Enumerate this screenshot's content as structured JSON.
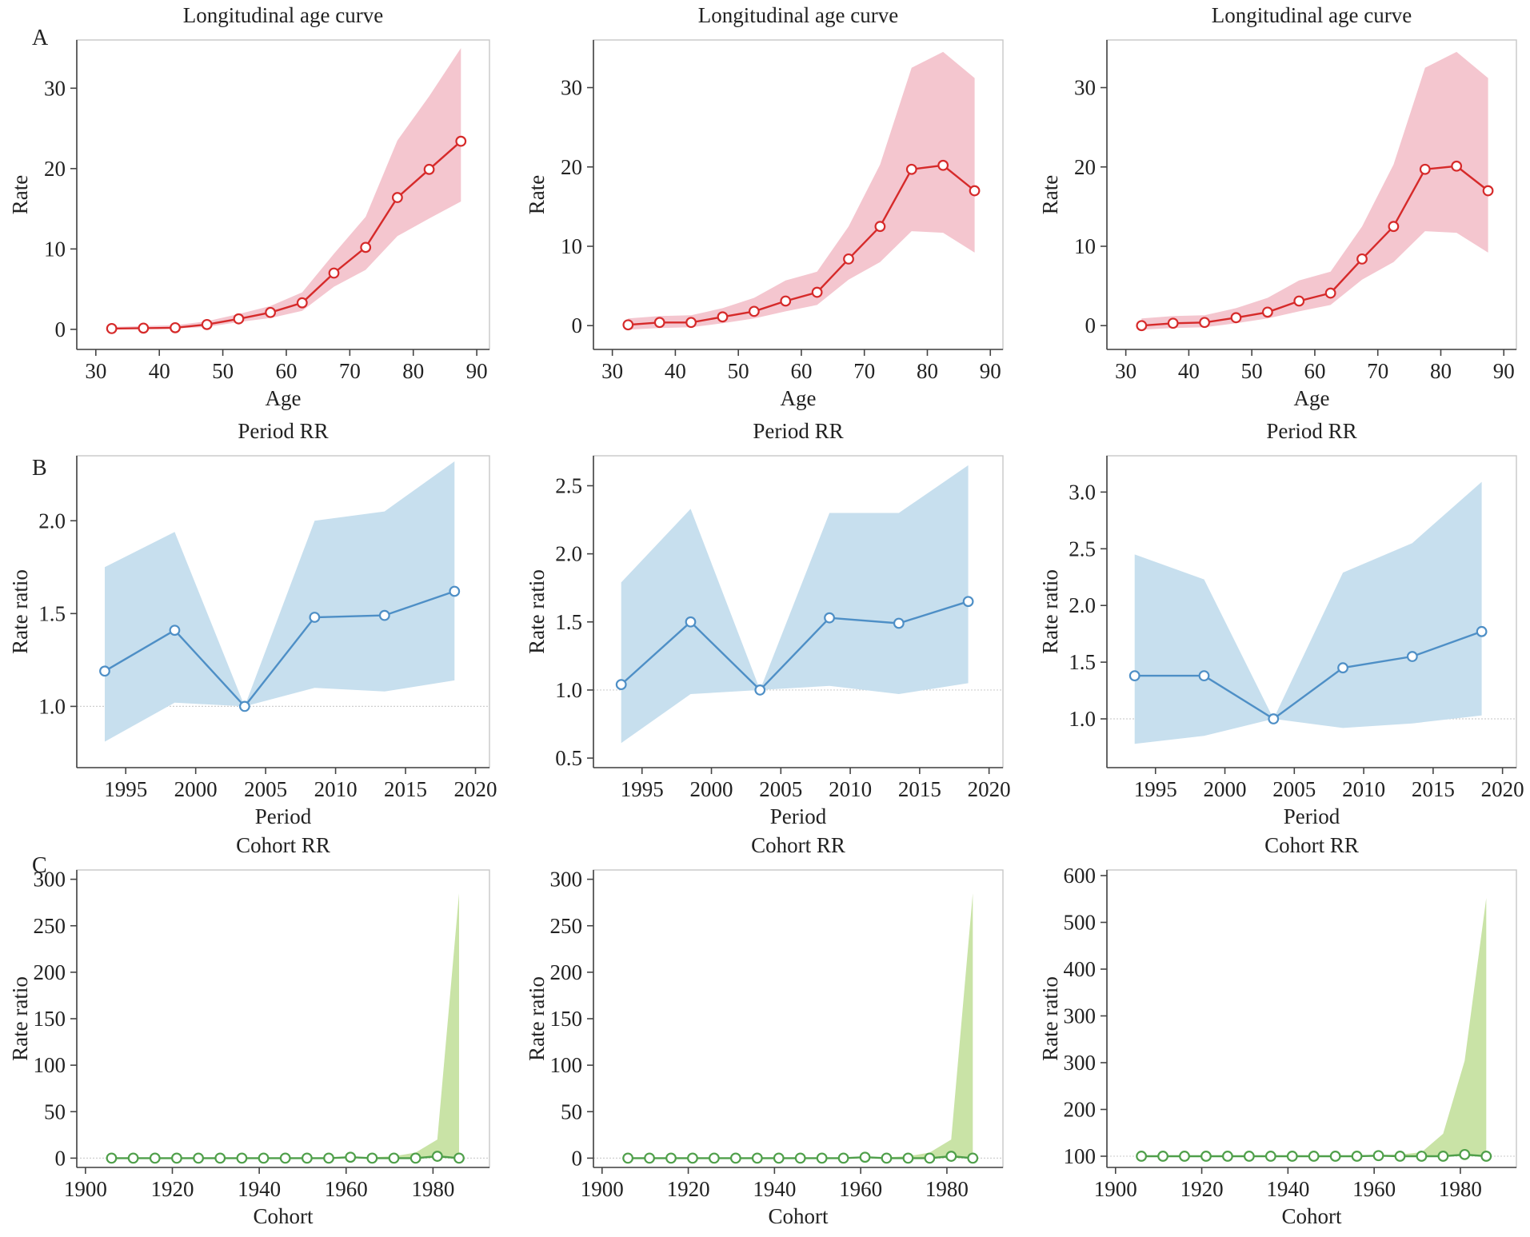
{
  "figure": {
    "row_labels": [
      "A",
      "B",
      "C"
    ]
  },
  "colors": {
    "age_line": "#d62a2a",
    "age_band": "#f4c6cf",
    "period_line": "#4e8fc6",
    "period_band": "#c7dfee",
    "cohort_line": "#4f9f4a",
    "cohort_band": "#c9e3a6"
  },
  "chart_data": [
    {
      "type": "line",
      "panel": "A1",
      "title": "Longitudinal age curve",
      "xlabel": "Age",
      "ylabel": "Rate",
      "xlim": [
        27,
        92
      ],
      "ylim": [
        -2.5,
        36
      ],
      "xticks": [
        30,
        40,
        50,
        60,
        70,
        80,
        90
      ],
      "xtick_labels": [
        "30",
        "40",
        "50",
        "60",
        "70",
        "80",
        "90"
      ],
      "yticks": [
        0,
        10,
        20,
        30
      ],
      "ytick_labels": [
        "0",
        "10",
        "20",
        "30"
      ],
      "grid": false,
      "x": [
        32.5,
        37.5,
        42.5,
        47.5,
        52.5,
        57.5,
        62.5,
        67.5,
        72.5,
        77.5,
        82.5,
        87.5
      ],
      "values": [
        0.1,
        0.15,
        0.2,
        0.6,
        1.3,
        2.1,
        3.3,
        7.0,
        10.2,
        16.4,
        19.9,
        23.4
      ],
      "lower": [
        0.0,
        0.05,
        0.1,
        0.3,
        0.9,
        1.4,
        2.3,
        5.3,
        7.4,
        11.6,
        13.8,
        15.9
      ],
      "upper": [
        0.3,
        0.4,
        0.5,
        1.0,
        1.9,
        2.9,
        4.6,
        9.4,
        14.0,
        23.5,
        29.0,
        35.0
      ]
    },
    {
      "type": "line",
      "panel": "A2",
      "title": "Longitudinal age curve",
      "xlabel": "Age",
      "ylabel": "Rate",
      "xlim": [
        27,
        92
      ],
      "ylim": [
        -3,
        36
      ],
      "xticks": [
        30,
        40,
        50,
        60,
        70,
        80,
        90
      ],
      "xtick_labels": [
        "30",
        "40",
        "50",
        "60",
        "70",
        "80",
        "90"
      ],
      "yticks": [
        0,
        10,
        20,
        30
      ],
      "ytick_labels": [
        "0",
        "10",
        "20",
        "30"
      ],
      "grid": false,
      "x": [
        32.5,
        37.5,
        42.5,
        47.5,
        52.5,
        57.5,
        62.5,
        67.5,
        72.5,
        77.5,
        82.5,
        87.5
      ],
      "values": [
        0.1,
        0.4,
        0.4,
        1.1,
        1.8,
        3.1,
        4.2,
        8.4,
        12.5,
        19.7,
        20.2,
        17.0
      ],
      "lower": [
        -0.5,
        -0.3,
        -0.2,
        0.3,
        0.9,
        1.8,
        2.6,
        5.8,
        8.0,
        11.9,
        11.7,
        9.2
      ],
      "upper": [
        0.9,
        1.2,
        1.3,
        2.2,
        3.5,
        5.7,
        6.8,
        12.5,
        20.3,
        32.5,
        34.5,
        31.2
      ]
    },
    {
      "type": "line",
      "panel": "A3",
      "title": "Longitudinal age curve",
      "xlabel": "Age",
      "ylabel": "Rate",
      "xlim": [
        27,
        92
      ],
      "ylim": [
        -3,
        36
      ],
      "xticks": [
        30,
        40,
        50,
        60,
        70,
        80,
        90
      ],
      "xtick_labels": [
        "30",
        "40",
        "50",
        "60",
        "70",
        "80",
        "90"
      ],
      "yticks": [
        0,
        10,
        20,
        30
      ],
      "ytick_labels": [
        "0",
        "10",
        "20",
        "30"
      ],
      "grid": false,
      "x": [
        32.5,
        37.5,
        42.5,
        47.5,
        52.5,
        57.5,
        62.5,
        67.5,
        72.5,
        77.5,
        82.5,
        87.5
      ],
      "values": [
        0.0,
        0.3,
        0.4,
        1.0,
        1.7,
        3.1,
        4.1,
        8.4,
        12.5,
        19.7,
        20.1,
        17.0
      ],
      "lower": [
        -0.5,
        -0.3,
        -0.2,
        0.3,
        0.9,
        1.8,
        2.6,
        5.8,
        8.0,
        11.9,
        11.7,
        9.2
      ],
      "upper": [
        0.9,
        1.2,
        1.3,
        2.2,
        3.5,
        5.7,
        6.8,
        12.5,
        20.3,
        32.5,
        34.5,
        31.2
      ]
    },
    {
      "type": "line",
      "panel": "B1",
      "title": "Period RR",
      "xlabel": "Period",
      "ylabel": "Rate ratio",
      "xlim": [
        1991.5,
        2021
      ],
      "ylim": [
        0.67,
        2.35
      ],
      "xticks": [
        1995,
        2000,
        2005,
        2010,
        2015,
        2020
      ],
      "xtick_labels": [
        "1995",
        "2000",
        "2005",
        "2010",
        "2015",
        "2020"
      ],
      "yticks": [
        1.0,
        1.5,
        2.0
      ],
      "ytick_labels": [
        "1.0",
        "1.5",
        "2.0"
      ],
      "reference": 1.0,
      "grid": false,
      "x": [
        1993.5,
        1998.5,
        2003.5,
        2008.5,
        2013.5,
        2018.5
      ],
      "values": [
        1.19,
        1.41,
        1.0,
        1.48,
        1.49,
        1.62
      ],
      "lower": [
        0.81,
        1.02,
        1.0,
        1.1,
        1.08,
        1.14
      ],
      "upper": [
        1.75,
        1.94,
        1.0,
        2.0,
        2.05,
        2.32
      ]
    },
    {
      "type": "line",
      "panel": "B2",
      "title": "Period RR",
      "xlabel": "Period",
      "ylabel": "Rate ratio",
      "xlim": [
        1991.5,
        2021
      ],
      "ylim": [
        0.43,
        2.72
      ],
      "xticks": [
        1995,
        2000,
        2005,
        2010,
        2015,
        2020
      ],
      "xtick_labels": [
        "1995",
        "2000",
        "2005",
        "2010",
        "2015",
        "2020"
      ],
      "yticks": [
        0.5,
        1.0,
        1.5,
        2.0,
        2.5
      ],
      "ytick_labels": [
        "0.5",
        "1.0",
        "1.5",
        "2.0",
        "2.5"
      ],
      "reference": 1.0,
      "grid": false,
      "x": [
        1993.5,
        1998.5,
        2003.5,
        2008.5,
        2013.5,
        2018.5
      ],
      "values": [
        1.04,
        1.5,
        1.0,
        1.53,
        1.49,
        1.65
      ],
      "lower": [
        0.61,
        0.97,
        1.0,
        1.03,
        0.97,
        1.05
      ],
      "upper": [
        1.79,
        2.33,
        1.0,
        2.3,
        2.3,
        2.65
      ]
    },
    {
      "type": "line",
      "panel": "B3",
      "title": "Period RR",
      "xlabel": "Period",
      "ylabel": "Rate ratio",
      "xlim": [
        1991.5,
        2021
      ],
      "ylim": [
        0.57,
        3.32
      ],
      "xticks": [
        1995,
        2000,
        2005,
        2010,
        2015,
        2020
      ],
      "xtick_labels": [
        "1995",
        "2000",
        "2005",
        "2010",
        "2015",
        "2020"
      ],
      "yticks": [
        1.0,
        1.5,
        2.0,
        2.5,
        3.0
      ],
      "ytick_labels": [
        "1.0",
        "1.5",
        "2.0",
        "2.5",
        "3.0"
      ],
      "reference": 1.0,
      "grid": false,
      "x": [
        1993.5,
        1998.5,
        2003.5,
        2008.5,
        2013.5,
        2018.5
      ],
      "values": [
        1.38,
        1.38,
        1.0,
        1.45,
        1.55,
        1.77
      ],
      "lower": [
        0.78,
        0.85,
        1.0,
        0.92,
        0.96,
        1.03
      ],
      "upper": [
        2.45,
        2.23,
        1.0,
        2.29,
        2.55,
        3.09
      ]
    },
    {
      "type": "line",
      "panel": "C1",
      "title": "Cohort RR",
      "xlabel": "Cohort",
      "ylabel": "Rate ratio",
      "xlim": [
        1898,
        1993
      ],
      "ylim": [
        -10,
        310
      ],
      "xticks": [
        1900,
        1920,
        1940,
        1960,
        1980
      ],
      "xtick_labels": [
        "1900",
        "1920",
        "1940",
        "1960",
        "1980"
      ],
      "yticks": [
        0,
        50,
        100,
        150,
        200,
        250,
        300
      ],
      "ytick_labels": [
        "0",
        "50",
        "100",
        "150",
        "200",
        "250",
        "300"
      ],
      "reference": 0,
      "grid": false,
      "x": [
        1906,
        1911,
        1916,
        1921,
        1926,
        1931,
        1936,
        1941,
        1946,
        1951,
        1956,
        1961,
        1966,
        1971,
        1976,
        1981,
        1986
      ],
      "values": [
        0,
        0,
        0,
        0,
        0,
        0,
        0,
        0,
        0,
        0,
        0,
        1,
        0,
        0,
        0,
        2,
        0
      ],
      "lower": [
        0,
        0,
        0,
        0,
        0,
        0,
        0,
        0,
        0,
        0,
        0,
        0,
        0,
        0,
        0,
        0,
        0
      ],
      "upper": [
        0,
        0,
        0,
        0,
        0,
        0,
        0,
        0,
        0,
        0,
        0,
        1,
        1,
        2,
        6,
        20,
        285
      ]
    },
    {
      "type": "line",
      "panel": "C2",
      "title": "Cohort RR",
      "xlabel": "Cohort",
      "ylabel": "Rate ratio",
      "xlim": [
        1898,
        1993
      ],
      "ylim": [
        -10,
        310
      ],
      "xticks": [
        1900,
        1920,
        1940,
        1960,
        1980
      ],
      "xtick_labels": [
        "1900",
        "1920",
        "1940",
        "1960",
        "1980"
      ],
      "yticks": [
        0,
        50,
        100,
        150,
        200,
        250,
        300
      ],
      "ytick_labels": [
        "0",
        "50",
        "100",
        "150",
        "200",
        "250",
        "300"
      ],
      "reference": 0,
      "grid": false,
      "x": [
        1906,
        1911,
        1916,
        1921,
        1926,
        1931,
        1936,
        1941,
        1946,
        1951,
        1956,
        1961,
        1966,
        1971,
        1976,
        1981,
        1986
      ],
      "values": [
        0,
        0,
        0,
        0,
        0,
        0,
        0,
        0,
        0,
        0,
        0,
        1,
        0,
        0,
        0,
        2,
        0
      ],
      "lower": [
        0,
        0,
        0,
        0,
        0,
        0,
        0,
        0,
        0,
        0,
        0,
        0,
        0,
        0,
        0,
        0,
        0
      ],
      "upper": [
        0,
        0,
        0,
        0,
        0,
        0,
        0,
        0,
        0,
        0,
        0,
        1,
        1,
        2,
        6,
        20,
        285
      ]
    },
    {
      "type": "line",
      "panel": "C3",
      "title": "Cohort RR",
      "xlabel": "Cohort",
      "ylabel": "Rate ratio",
      "xlim": [
        1898,
        1993
      ],
      "ylim": [
        80,
        610
      ],
      "xticks": [
        1900,
        1920,
        1940,
        1960,
        1980
      ],
      "xtick_labels": [
        "1900",
        "1920",
        "1940",
        "1960",
        "1980"
      ],
      "yticks": [
        100,
        200,
        300,
        400,
        500,
        600
      ],
      "ytick_labels": [
        "100",
        "200",
        "300",
        "400",
        "500",
        "600"
      ],
      "extra_ytick": {
        "value": 300,
        "label": "300"
      },
      "reference": 100,
      "grid": false,
      "x": [
        1906,
        1911,
        1916,
        1921,
        1926,
        1931,
        1936,
        1941,
        1946,
        1951,
        1956,
        1961,
        1966,
        1971,
        1976,
        1981,
        1986
      ],
      "values": [
        100,
        100,
        100,
        100,
        100,
        100,
        100,
        100,
        100,
        100,
        100,
        101,
        100,
        100,
        100,
        103,
        100
      ],
      "lower": [
        100,
        100,
        100,
        100,
        100,
        100,
        100,
        100,
        100,
        100,
        100,
        100,
        100,
        100,
        100,
        100,
        100
      ],
      "upper": [
        100,
        100,
        100,
        100,
        100,
        100,
        100,
        100,
        101,
        101,
        101,
        102,
        103,
        107,
        140,
        270,
        560
      ]
    }
  ]
}
